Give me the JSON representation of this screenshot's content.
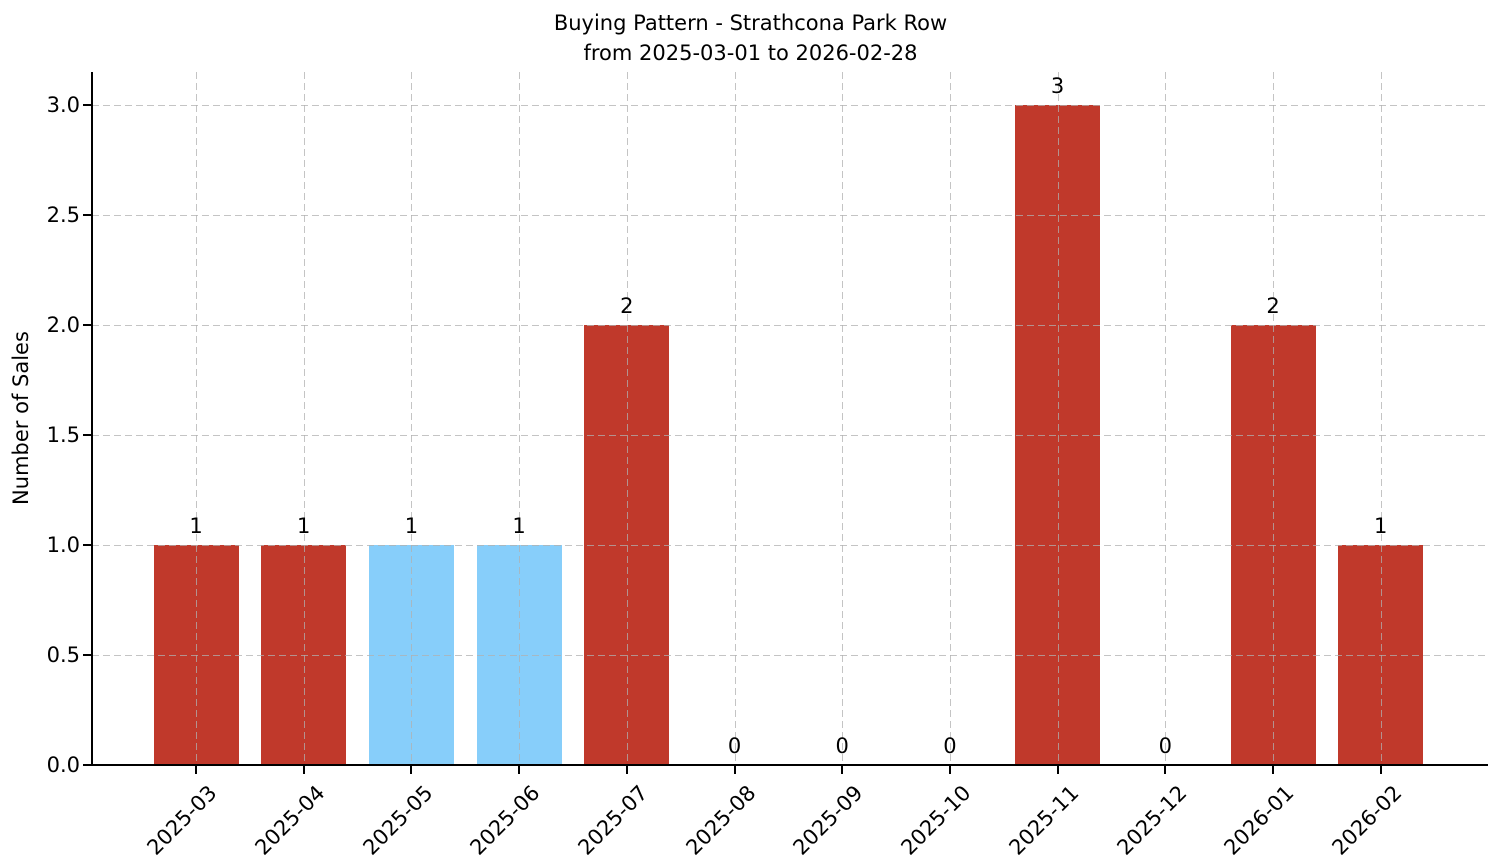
{
  "figure": {
    "title_line1": "Buying Pattern - Strathcona Park Row",
    "title_line2": "from 2025-03-01 to 2026-02-28"
  },
  "chart_data": {
    "type": "bar",
    "title": "Buying Pattern - Strathcona Park Row\nfrom 2025-03-01 to 2026-02-28",
    "xlabel": "",
    "ylabel": "Number of Sales",
    "categories": [
      "2025-03",
      "2025-04",
      "2025-05",
      "2025-06",
      "2025-07",
      "2025-08",
      "2025-09",
      "2025-10",
      "2025-11",
      "2025-12",
      "2026-01",
      "2026-02"
    ],
    "values": [
      1,
      1,
      1,
      1,
      2,
      0,
      0,
      0,
      3,
      0,
      2,
      1
    ],
    "bar_value_labels": [
      "1",
      "1",
      "1",
      "1",
      "2",
      "0",
      "0",
      "0",
      "3",
      "0",
      "2",
      "1"
    ],
    "bar_colors": [
      "#c0392b",
      "#c0392b",
      "#87cefa",
      "#87cefa",
      "#c0392b",
      "#c0392b",
      "#c0392b",
      "#c0392b",
      "#c0392b",
      "#c0392b",
      "#c0392b",
      "#c0392b"
    ],
    "yticks": [
      0.0,
      0.5,
      1.0,
      1.5,
      2.0,
      2.5,
      3.0
    ],
    "ytick_labels": [
      "0.0",
      "0.5",
      "1.0",
      "1.5",
      "2.0",
      "2.5",
      "3.0"
    ],
    "ylim": [
      0,
      3.15
    ],
    "x_tick_rotation_deg": 45,
    "grid": {
      "visible": true,
      "linestyle": "dashed",
      "color": "#b0b0b0",
      "alpha": 0.7,
      "above_bars": true
    },
    "legend": null,
    "colors": {
      "red_bar": "#c0392b",
      "blue_bar": "#87cefa",
      "axis": "#000000",
      "text": "#000000",
      "background": "#ffffff"
    }
  }
}
